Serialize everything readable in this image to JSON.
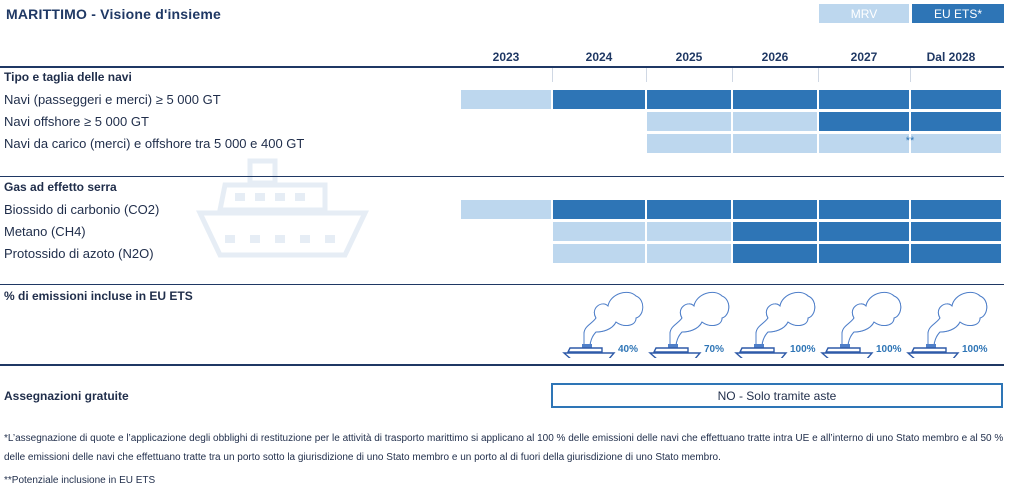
{
  "header": {
    "title": "MARITTIMO - Visione d'insieme",
    "toggles": [
      {
        "label": "MRV",
        "active": false
      },
      {
        "label": "EU ETS*",
        "active": true
      }
    ]
  },
  "years": [
    "2023",
    "2024",
    "2025",
    "2026",
    "2027",
    "Dal 2028"
  ],
  "colors": {
    "eu_ets": "#2e75b6",
    "mrv": "#bdd7ee"
  },
  "ship_types": {
    "heading": "Tipo e taglia delle navi",
    "rows": [
      {
        "label": "Navi (passeggeri e merci) ≥ 5 000 GT",
        "cells": [
          "mrv",
          "ets",
          "ets",
          "ets",
          "ets",
          "ets"
        ]
      },
      {
        "label": "Navi offshore ≥ 5 000 GT",
        "cells": [
          "",
          "",
          "mrv",
          "mrv",
          "ets",
          "ets"
        ]
      },
      {
        "label": "Navi da carico (merci) e offshore tra 5 000 e 400 GT",
        "cells": [
          "",
          "",
          "mrv",
          "mrv",
          "mrv",
          "mrv"
        ],
        "mark": "**"
      }
    ]
  },
  "gases": {
    "heading": "Gas ad effetto serra",
    "rows": [
      {
        "label": "Biossido di carbonio (CO2)",
        "cells": [
          "mrv",
          "ets",
          "ets",
          "ets",
          "ets",
          "ets"
        ]
      },
      {
        "label": "Metano (CH4)",
        "cells": [
          "",
          "mrv",
          "mrv",
          "ets",
          "ets",
          "ets"
        ]
      },
      {
        "label": "Protossido di azoto (N2O)",
        "cells": [
          "",
          "mrv",
          "mrv",
          "ets",
          "ets",
          "ets"
        ]
      }
    ]
  },
  "emissions": {
    "heading": "% di emissioni incluse in EU ETS",
    "values": [
      {
        "year": "2024",
        "label": "40%",
        "fraction": 0.4
      },
      {
        "year": "2025",
        "label": "70%",
        "fraction": 0.7
      },
      {
        "year": "2026",
        "label": "100%",
        "fraction": 1.0
      },
      {
        "year": "2027",
        "label": "100%",
        "fraction": 1.0
      },
      {
        "year": "2028",
        "label": "100%",
        "fraction": 1.0
      }
    ]
  },
  "free_allocation": {
    "label": "Assegnazioni gratuite",
    "value": "NO - Solo tramite aste"
  },
  "notes": {
    "note1": "*L’assegnazione di quote e l’applicazione degli obblighi di restituzione per le attività di trasporto marittimo si applicano al 100 % delle emissioni delle navi che effettuano tratte intra UE e all’interno di uno Stato membro e al 50 % delle emissioni delle navi che effettuano tratte tra un porto sotto la giurisdizione di uno Stato membro e un porto al di fuori della giurisdizione di uno Stato membro.",
    "note2": "**Potenziale inclusione in EU ETS"
  }
}
